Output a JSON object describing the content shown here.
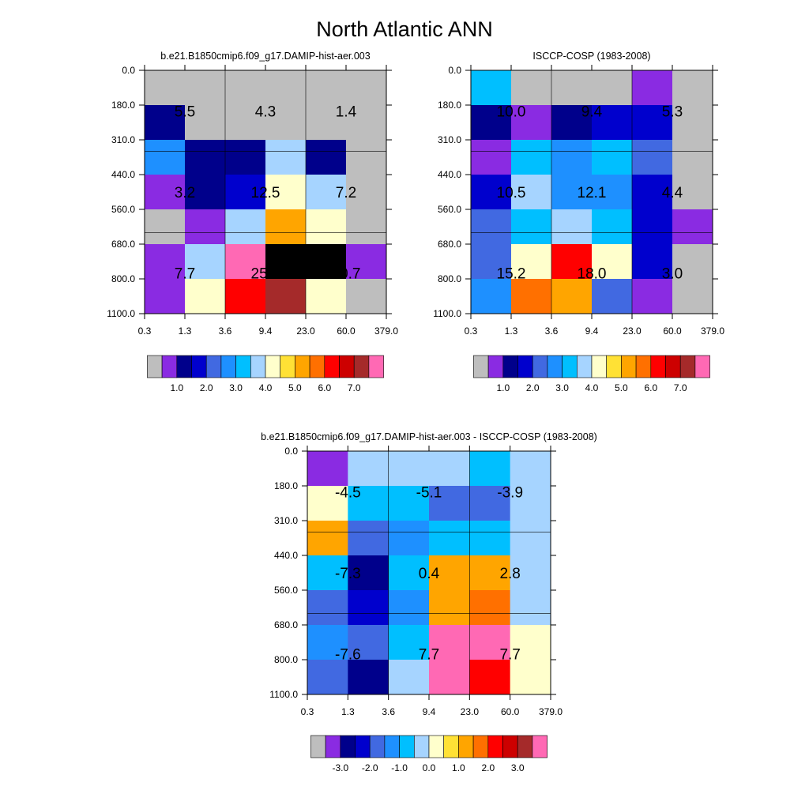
{
  "figure": {
    "title": "North Atlantic ANN"
  },
  "chart_data": [
    {
      "type": "heatmap",
      "title": "b.e21.B1850cmip6.f09_g17.DAMIP-hist-aer.003",
      "xlabel": "",
      "ylabel": "",
      "x_tick_labels": [
        "0.3",
        "1.3",
        "3.6",
        "9.4",
        "23.0",
        "60.0",
        "379.0"
      ],
      "y_tick_labels": [
        "0.0",
        "180.0",
        "310.0",
        "440.0",
        "560.0",
        "680.0",
        "800.0",
        "1100.0"
      ],
      "cell_color_index": [
        [
          0,
          0,
          0,
          0,
          0,
          0
        ],
        [
          2,
          0,
          0,
          0,
          0,
          0
        ],
        [
          5,
          2,
          2,
          7,
          2,
          0
        ],
        [
          1,
          2,
          3,
          8,
          7,
          0
        ],
        [
          0,
          1,
          7,
          10,
          8,
          0
        ],
        [
          1,
          7,
          15,
          18,
          16,
          1
        ],
        [
          1,
          8,
          12,
          14,
          8,
          0
        ]
      ],
      "box_annotations": [
        [
          "5.5",
          "4.3",
          "1.4"
        ],
        [
          "3.2",
          "12.5",
          "7.2"
        ],
        [
          "7.7",
          "25.7",
          "10.7"
        ]
      ],
      "colorbar": {
        "colors": [
          "#BEBEBE",
          "#8A2BE2",
          "#00008B",
          "#0000CD",
          "#4169E1",
          "#1E90FF",
          "#00BFFF",
          "#A6D4FF",
          "#FFFFCC",
          "#FFE135",
          "#FFA500",
          "#FF7000",
          "#FF0000",
          "#CD0000",
          "#A52A2A",
          "#FF69B4"
        ],
        "labels": [
          "1.0",
          "2.0",
          "3.0",
          "4.0",
          "5.0",
          "6.0",
          "7.0"
        ]
      }
    },
    {
      "type": "heatmap",
      "title": "ISCCP-COSP (1983-2008)",
      "xlabel": "",
      "ylabel": "",
      "x_tick_labels": [
        "0.3",
        "1.3",
        "3.6",
        "9.4",
        "23.0",
        "60.0",
        "379.0"
      ],
      "y_tick_labels": [
        "0.0",
        "180.0",
        "310.0",
        "440.0",
        "560.0",
        "680.0",
        "800.0",
        "1100.0"
      ],
      "cell_color_index": [
        [
          6,
          0,
          0,
          0,
          1,
          0
        ],
        [
          2,
          1,
          2,
          3,
          3,
          0
        ],
        [
          1,
          6,
          5,
          6,
          4,
          0
        ],
        [
          3,
          7,
          5,
          5,
          3,
          0
        ],
        [
          4,
          6,
          7,
          6,
          3,
          1
        ],
        [
          4,
          8,
          12,
          8,
          3,
          0
        ],
        [
          5,
          11,
          10,
          4,
          1,
          0
        ]
      ],
      "box_annotations": [
        [
          "10.0",
          "9.4",
          "5.3"
        ],
        [
          "10.5",
          "12.1",
          "4.4"
        ],
        [
          "15.2",
          "18.0",
          "3.0"
        ]
      ],
      "colorbar": {
        "colors": [
          "#BEBEBE",
          "#8A2BE2",
          "#00008B",
          "#0000CD",
          "#4169E1",
          "#1E90FF",
          "#00BFFF",
          "#A6D4FF",
          "#FFFFCC",
          "#FFE135",
          "#FFA500",
          "#FF7000",
          "#FF0000",
          "#CD0000",
          "#A52A2A",
          "#FF69B4"
        ],
        "labels": [
          "1.0",
          "2.0",
          "3.0",
          "4.0",
          "5.0",
          "6.0",
          "7.0"
        ]
      }
    },
    {
      "type": "heatmap",
      "title": "b.e21.B1850cmip6.f09_g17.DAMIP-hist-aer.003 - ISCCP-COSP (1983-2008)",
      "xlabel": "",
      "ylabel": "",
      "x_tick_labels": [
        "0.3",
        "1.3",
        "3.6",
        "9.4",
        "23.0",
        "60.0",
        "379.0"
      ],
      "y_tick_labels": [
        "0.0",
        "180.0",
        "310.0",
        "440.0",
        "560.0",
        "680.0",
        "800.0",
        "1100.0"
      ],
      "cell_color_index": [
        [
          1,
          7,
          7,
          7,
          6,
          7
        ],
        [
          8,
          6,
          6,
          4,
          4,
          7
        ],
        [
          10,
          4,
          5,
          6,
          6,
          7
        ],
        [
          6,
          2,
          6,
          10,
          10,
          7
        ],
        [
          4,
          3,
          5,
          10,
          11,
          7
        ],
        [
          5,
          4,
          6,
          15,
          15,
          8
        ],
        [
          4,
          2,
          7,
          15,
          12,
          8
        ]
      ],
      "box_annotations": [
        [
          "-4.5",
          "-5.1",
          "-3.9"
        ],
        [
          "-7.3",
          "0.4",
          "2.8"
        ],
        [
          "-7.6",
          "7.7",
          "7.7"
        ]
      ],
      "colorbar": {
        "colors": [
          "#BEBEBE",
          "#8A2BE2",
          "#00008B",
          "#0000CD",
          "#4169E1",
          "#1E90FF",
          "#00BFFF",
          "#A6D4FF",
          "#FFFFCC",
          "#FFE135",
          "#FFA500",
          "#FF7000",
          "#FF0000",
          "#CD0000",
          "#A52A2A",
          "#FF69B4"
        ],
        "labels": [
          "-3.0",
          "-2.0",
          "-1.0",
          "0.0",
          "1.0",
          "2.0",
          "3.0"
        ]
      }
    }
  ]
}
